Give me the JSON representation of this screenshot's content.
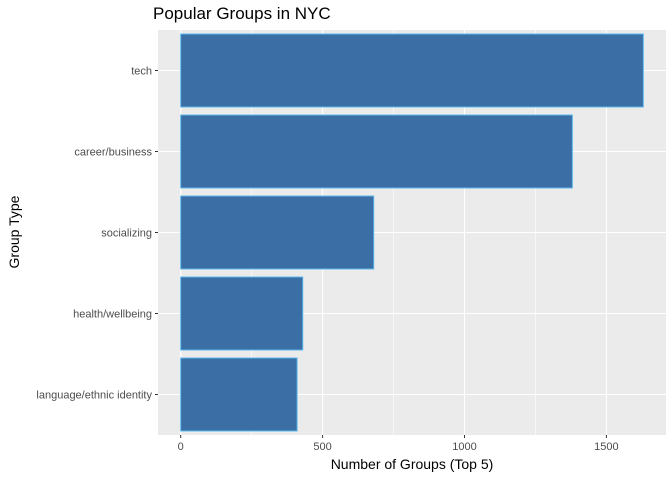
{
  "chart_data": {
    "type": "bar",
    "orientation": "horizontal",
    "title": "Popular Groups in NYC",
    "xlabel": "Number of Groups (Top 5)",
    "ylabel": "Group Type",
    "categories": [
      "tech",
      "career/business",
      "socializing",
      "health/wellbeing",
      "language/ethnic identity"
    ],
    "values": [
      1630,
      1380,
      680,
      430,
      410
    ],
    "xlim": [
      -80,
      1710
    ],
    "xticks": [
      "0",
      "500",
      "1000",
      "1500"
    ],
    "grid": true,
    "legend": "none",
    "colors": {
      "bar_fill": "#3A6EA5",
      "bar_stroke": "#56B4E9",
      "panel": "#EBEBEB",
      "grid_major": "#FFFFFF",
      "grid_minor": "#F5F5F5"
    }
  }
}
